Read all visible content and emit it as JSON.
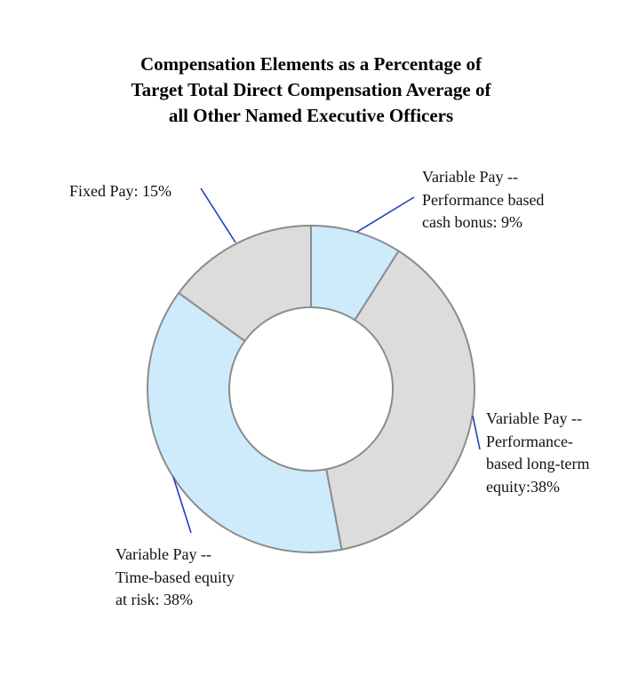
{
  "chart_data": {
    "type": "pie",
    "donut": true,
    "title_lines": [
      "Compensation Elements as a Percentage of",
      "Target Total Direct Compensation Average of",
      "all Other Named Executive Officers"
    ],
    "slices": [
      {
        "label_lines": [
          "Variable Pay --",
          "Performance based",
          "cash bonus: 9%"
        ],
        "value": 9,
        "color": "#cdebfb"
      },
      {
        "label_lines": [
          "Variable Pay --",
          "Performance-",
          "based long-term",
          "equity:38%"
        ],
        "value": 38,
        "color": "#dcdcdc"
      },
      {
        "label_lines": [
          "Variable Pay --",
          "Time-based equity",
          "at risk: 38%"
        ],
        "value": 38,
        "color": "#cdebfb"
      },
      {
        "label_lines": [
          "Fixed Pay: 15%"
        ],
        "value": 15,
        "color": "#dcdcdc"
      }
    ],
    "legend": "none",
    "slice_border_color": "#8c8c8c",
    "leader_line_color": "#1f3fbf"
  }
}
